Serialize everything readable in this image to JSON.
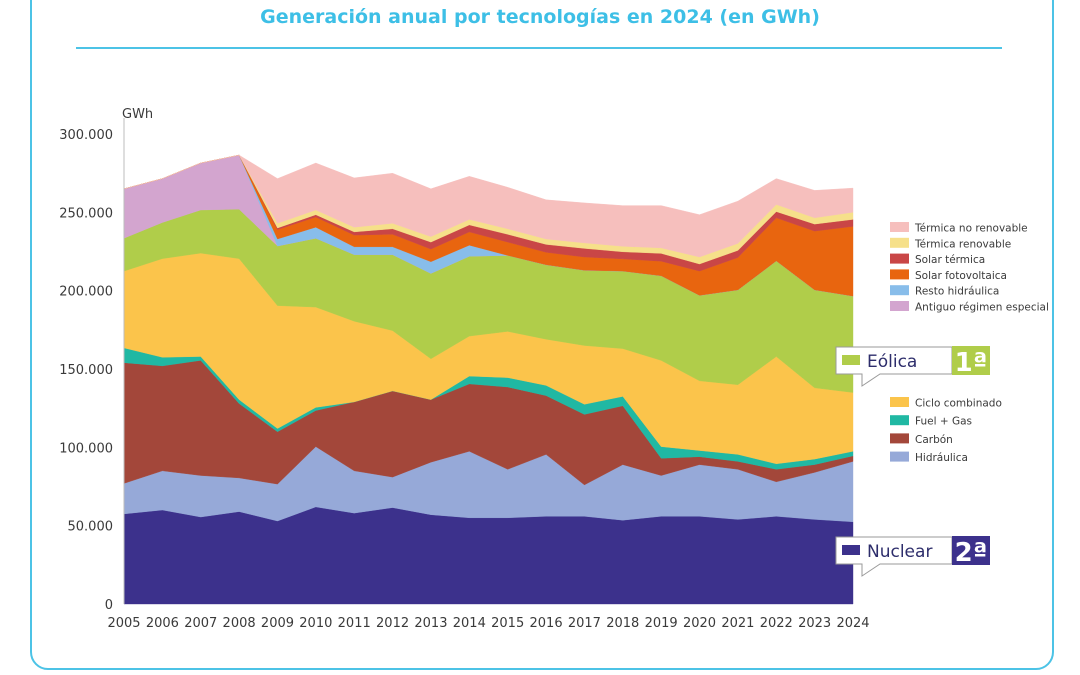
{
  "title": "Generación anual por tecnologías en 2024 (en GWh)",
  "chart_data": {
    "type": "area",
    "stacked": true,
    "unit_label": "GWh",
    "x": [
      "2005",
      "2006",
      "2007",
      "2008",
      "2009",
      "2010",
      "2011",
      "2012",
      "2013",
      "2014",
      "2015",
      "2016",
      "2017",
      "2018",
      "2019",
      "2020",
      "2021",
      "2022",
      "2023",
      "2024"
    ],
    "y_ticks": [
      "0",
      "50.000",
      "100.000",
      "150.000",
      "200.000",
      "250.000",
      "300.000"
    ],
    "ylim": [
      0,
      300000
    ],
    "legend_position": "right",
    "series": [
      {
        "name": "Nuclear",
        "color": "#3c318c",
        "values": [
          57500,
          60000,
          55500,
          59000,
          53000,
          62000,
          58000,
          61500,
          57000,
          55000,
          55000,
          56000,
          56000,
          53500,
          56000,
          56000,
          54000,
          56000,
          54000,
          52500
        ]
      },
      {
        "name": "Hidráulica",
        "color": "#96a9d8",
        "values": [
          19500,
          25000,
          26500,
          21500,
          23500,
          38500,
          27000,
          19500,
          33500,
          42500,
          31000,
          39500,
          20000,
          35500,
          26000,
          33000,
          32000,
          22000,
          30000,
          38500
        ]
      },
      {
        "name": "Carbón",
        "color": "#a3473a",
        "values": [
          77000,
          67000,
          73500,
          47500,
          33500,
          23000,
          44000,
          55000,
          40000,
          43000,
          52500,
          37500,
          45000,
          37500,
          11000,
          5000,
          5000,
          8000,
          5000,
          3500
        ]
      },
      {
        "name": "Fuel + Gas",
        "color": "#20b8a3",
        "values": [
          9500,
          5500,
          2500,
          2500,
          2000,
          2000,
          0,
          0,
          0,
          5000,
          6000,
          6500,
          6500,
          6000,
          7500,
          4000,
          4500,
          3500,
          3500,
          3000
        ]
      },
      {
        "name": "Ciclo combinado",
        "color": "#fbc44b",
        "values": [
          49000,
          63000,
          66000,
          90000,
          78500,
          64000,
          51500,
          38500,
          26000,
          25500,
          29500,
          29500,
          37500,
          30500,
          55000,
          44500,
          44500,
          68500,
          45500,
          37500
        ]
      },
      {
        "name": "Eólica",
        "color": "#b0cd4a",
        "values": [
          21000,
          23000,
          27500,
          31500,
          38000,
          44000,
          42500,
          48500,
          54500,
          51000,
          48500,
          47500,
          48000,
          49500,
          54000,
          54500,
          60500,
          61000,
          62500,
          61500
        ]
      },
      {
        "name": "Antiguo régimen especial",
        "color": "#d3a5cf",
        "values": [
          31500,
          28000,
          30000,
          34500,
          0,
          0,
          0,
          0,
          0,
          0,
          0,
          0,
          0,
          0,
          0,
          0,
          0,
          0,
          0,
          0
        ]
      },
      {
        "name": "Resto hidráulica",
        "color": "#88bdea",
        "values": [
          0,
          0,
          0,
          0,
          4500,
          7000,
          5000,
          5000,
          7500,
          7000,
          0,
          0,
          0,
          0,
          0,
          0,
          0,
          0,
          0,
          0
        ]
      },
      {
        "name": "Solar fotovoltaica",
        "color": "#e8650f",
        "values": [
          0,
          0,
          0,
          0,
          6000,
          6500,
          7500,
          8000,
          8000,
          8500,
          8500,
          8000,
          8500,
          7800,
          9300,
          15500,
          20700,
          27500,
          37500,
          44500
        ]
      },
      {
        "name": "Solar térmica",
        "color": "#c94646",
        "values": [
          0,
          0,
          0,
          0,
          1000,
          1500,
          2000,
          3500,
          4500,
          4500,
          5000,
          5000,
          5500,
          4500,
          5000,
          4500,
          4500,
          4000,
          4500,
          4500
        ]
      },
      {
        "name": "Térmica renovable",
        "color": "#f6e08a",
        "values": [
          0,
          0,
          0,
          0,
          3000,
          3000,
          3000,
          3500,
          3500,
          3500,
          3500,
          3500,
          3500,
          3500,
          3500,
          4500,
          4500,
          4500,
          4000,
          4500
        ]
      },
      {
        "name": "Térmica no renovable",
        "color": "#f6bfbd",
        "values": [
          0,
          0,
          0,
          0,
          28500,
          30000,
          31500,
          32000,
          30500,
          27500,
          26500,
          25000,
          25500,
          26000,
          27000,
          27000,
          27000,
          16500,
          17500,
          15500
        ]
      }
    ],
    "legend_upper": [
      "Térmica no renovable",
      "Térmica renovable",
      "Solar térmica",
      "Solar fotovoltaica",
      "Resto hidráulica",
      "Antiguo régimen especial"
    ],
    "legend_lower": [
      "Ciclo combinado",
      "Fuel + Gas",
      "Carbón",
      "Hidráulica"
    ],
    "callouts": [
      {
        "series": "Eólica",
        "label": "Eólica",
        "rank": "1ª",
        "rank_color": "#b0cd4a"
      },
      {
        "series": "Nuclear",
        "label": "Nuclear",
        "rank": "2ª",
        "rank_color": "#3c318c"
      }
    ]
  }
}
